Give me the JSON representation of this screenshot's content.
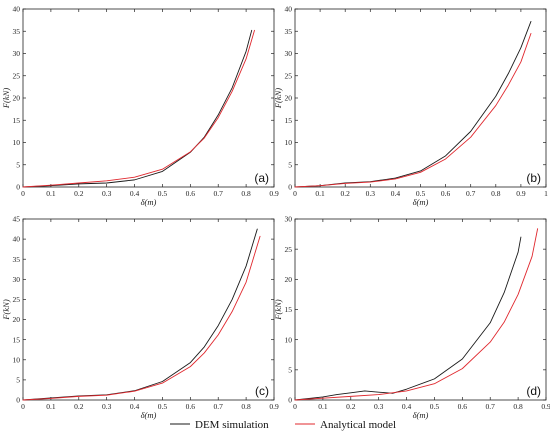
{
  "colors": {
    "dem": "#1a1a1a",
    "analytical": "#e0282e"
  },
  "legend": [
    {
      "label": "DEM simulation",
      "color": "#1a1a1a"
    },
    {
      "label": "Analytical model",
      "color": "#e0282e"
    }
  ],
  "chart_data": [
    {
      "type": "line",
      "panel_label": "(a)",
      "xlabel": "δ(m)",
      "ylabel": "F(kN)",
      "xlim": [
        0,
        0.9
      ],
      "ylim": [
        0,
        40
      ],
      "xticks": [
        "0",
        "0.1",
        "0.2",
        "0.3",
        "0.4",
        "0.5",
        "0.6",
        "0.7",
        "0.8",
        "0.9"
      ],
      "yticks": [
        "0",
        "5",
        "10",
        "15",
        "20",
        "25",
        "30",
        "35",
        "40"
      ],
      "grid": false,
      "series": [
        {
          "name": "DEM simulation",
          "x": [
            0,
            0.1,
            0.2,
            0.3,
            0.4,
            0.5,
            0.6,
            0.65,
            0.7,
            0.75,
            0.8,
            0.82
          ],
          "y": [
            0,
            0.3,
            0.7,
            0.9,
            1.6,
            3.5,
            7.8,
            11.2,
            16.2,
            22.3,
            30.5,
            35.2
          ]
        },
        {
          "name": "Analytical model",
          "x": [
            0,
            0.1,
            0.2,
            0.3,
            0.4,
            0.5,
            0.6,
            0.65,
            0.7,
            0.75,
            0.8,
            0.83
          ],
          "y": [
            0,
            0.4,
            0.9,
            1.4,
            2.2,
            4.0,
            7.9,
            11.0,
            15.6,
            21.5,
            28.8,
            35.2
          ]
        }
      ]
    },
    {
      "type": "line",
      "panel_label": "(b)",
      "xlabel": "δ(m)",
      "ylabel": "F(kN)",
      "xlim": [
        0,
        1
      ],
      "ylim": [
        0,
        40
      ],
      "xticks": [
        "0",
        "0.1",
        "0.2",
        "0.3",
        "0.4",
        "0.5",
        "0.6",
        "0.7",
        "0.8",
        "0.9",
        "1"
      ],
      "yticks": [
        "0",
        "5",
        "10",
        "15",
        "20",
        "25",
        "30",
        "35",
        "40"
      ],
      "grid": false,
      "series": [
        {
          "name": "DEM simulation",
          "x": [
            0,
            0.1,
            0.2,
            0.3,
            0.4,
            0.5,
            0.6,
            0.7,
            0.8,
            0.85,
            0.9,
            0.94
          ],
          "y": [
            0,
            0.3,
            0.9,
            1.2,
            2.0,
            3.6,
            7.0,
            12.5,
            20.4,
            25.5,
            31.3,
            37.2
          ]
        },
        {
          "name": "Analytical model",
          "x": [
            0,
            0.1,
            0.2,
            0.3,
            0.4,
            0.5,
            0.6,
            0.7,
            0.8,
            0.85,
            0.9,
            0.94
          ],
          "y": [
            0,
            0.3,
            0.8,
            1.1,
            1.8,
            3.3,
            6.3,
            11.2,
            18.3,
            22.9,
            28.1,
            34.5
          ]
        }
      ]
    },
    {
      "type": "line",
      "panel_label": "(c)",
      "xlabel": "δ(m)",
      "ylabel": "F(kN)",
      "xlim": [
        0,
        0.9
      ],
      "ylim": [
        0,
        45
      ],
      "xticks": [
        "0",
        "0.1",
        "0.2",
        "0.3",
        "0.4",
        "0.5",
        "0.6",
        "0.7",
        "0.8",
        "0.9"
      ],
      "yticks": [
        "0",
        "5",
        "10",
        "15",
        "20",
        "25",
        "30",
        "35",
        "40",
        "45"
      ],
      "grid": false,
      "series": [
        {
          "name": "DEM simulation",
          "x": [
            0,
            0.1,
            0.2,
            0.3,
            0.4,
            0.5,
            0.6,
            0.65,
            0.7,
            0.75,
            0.8,
            0.84
          ],
          "y": [
            0,
            0.5,
            1.0,
            1.3,
            2.3,
            4.6,
            9.3,
            13.2,
            18.5,
            25.0,
            33.3,
            42.5
          ]
        },
        {
          "name": "Analytical model",
          "x": [
            0,
            0.1,
            0.2,
            0.3,
            0.4,
            0.5,
            0.6,
            0.65,
            0.7,
            0.75,
            0.8,
            0.85
          ],
          "y": [
            0,
            0.4,
            0.9,
            1.2,
            2.2,
            4.2,
            8.3,
            11.7,
            16.2,
            22.0,
            29.3,
            40.7
          ]
        }
      ]
    },
    {
      "type": "line",
      "panel_label": "(d)",
      "xlabel": "δ(m)",
      "ylabel": "F(kN)",
      "xlim": [
        0,
        0.9
      ],
      "ylim": [
        0,
        30
      ],
      "xticks": [
        "0",
        "0.1",
        "0.2",
        "0.3",
        "0.4",
        "0.5",
        "0.6",
        "0.7",
        "0.8",
        "0.9"
      ],
      "yticks": [
        "0",
        "5",
        "10",
        "15",
        "20",
        "25",
        "30"
      ],
      "grid": false,
      "series": [
        {
          "name": "DEM simulation",
          "x": [
            0,
            0.1,
            0.15,
            0.2,
            0.25,
            0.3,
            0.35,
            0.4,
            0.5,
            0.6,
            0.7,
            0.75,
            0.8,
            0.81
          ],
          "y": [
            0,
            0.5,
            0.9,
            1.2,
            1.5,
            1.3,
            1.1,
            1.8,
            3.5,
            6.8,
            12.8,
            17.8,
            24.5,
            27.0
          ]
        },
        {
          "name": "Analytical model",
          "x": [
            0,
            0.1,
            0.2,
            0.3,
            0.4,
            0.5,
            0.6,
            0.7,
            0.75,
            0.8,
            0.85,
            0.87
          ],
          "y": [
            0,
            0.3,
            0.6,
            0.9,
            1.5,
            2.7,
            5.2,
            9.6,
            12.9,
            17.5,
            23.8,
            28.4
          ]
        }
      ]
    }
  ]
}
